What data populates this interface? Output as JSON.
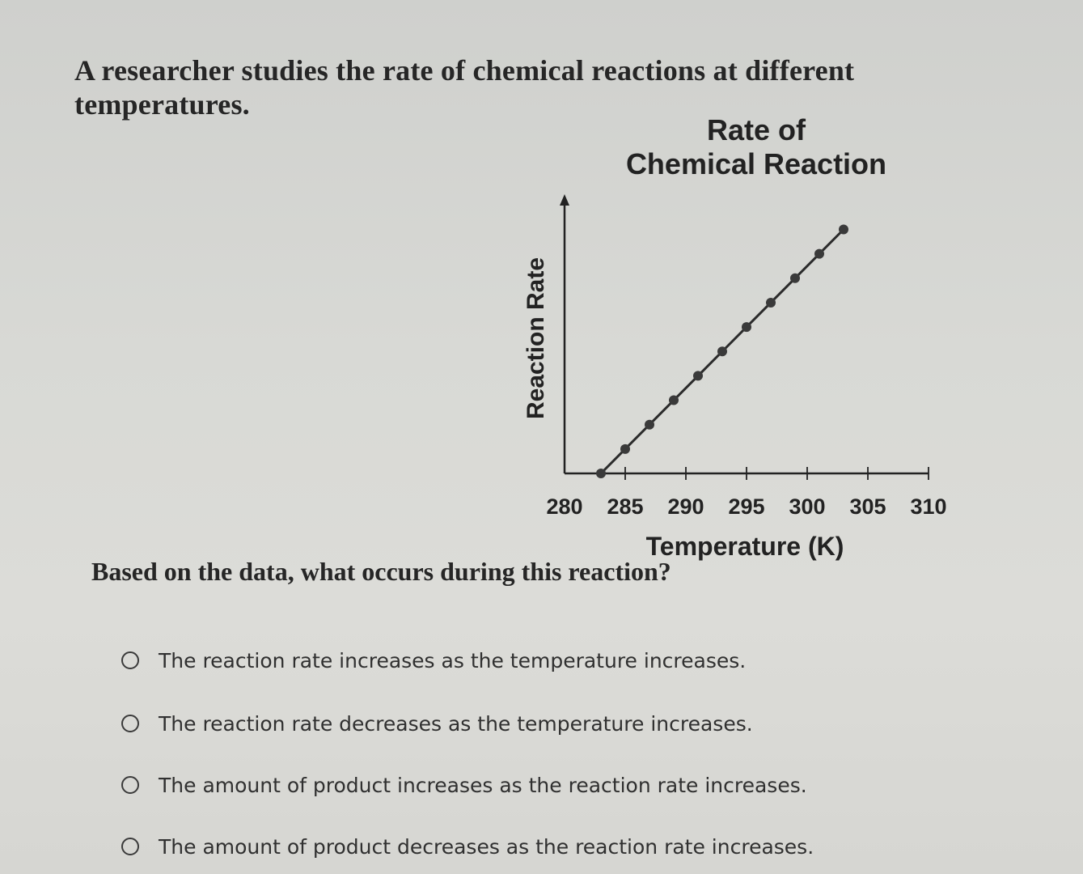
{
  "stem": "A researcher studies the rate of chemical reactions at different temperatures.",
  "question": "Based on the data, what occurs during this reaction?",
  "options": [
    "The reaction rate increases as the temperature increases.",
    "The reaction rate decreases as the temperature increases.",
    "The amount of product increases as the reaction rate increases.",
    "The amount of product decreases as the reaction rate increases."
  ],
  "chart_data": {
    "type": "line",
    "title_line1": "Rate of",
    "title_line2": "Chemical Reaction",
    "xlabel": "Temperature (K)",
    "ylabel": "Reaction Rate",
    "x_ticks": [
      280,
      285,
      290,
      295,
      300,
      305,
      310
    ],
    "xlim": [
      280,
      310
    ],
    "ylim": [
      0,
      10
    ],
    "y_ticks_shown": false,
    "grid": false,
    "x": [
      283,
      285,
      287,
      289,
      291,
      293,
      295,
      297,
      299,
      301,
      303
    ],
    "y": [
      0.0,
      0.9,
      1.8,
      2.7,
      3.6,
      4.5,
      5.4,
      6.3,
      7.2,
      8.1,
      9.0
    ],
    "marker_color": "#3a3a3a",
    "line_color": "#2b2b2b"
  }
}
